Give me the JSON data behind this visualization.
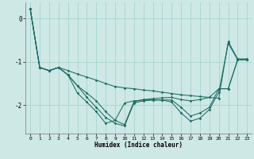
{
  "background_color": "#cde8e5",
  "grid_color": "#a8d4d0",
  "line_color": "#1e6b65",
  "xlabel": "Humidex (Indice chaleur)",
  "xlim": [
    -0.5,
    23.5
  ],
  "ylim": [
    -2.65,
    0.38
  ],
  "yticks": [
    0,
    -1,
    -2
  ],
  "xticks": [
    0,
    1,
    2,
    3,
    4,
    5,
    6,
    7,
    8,
    9,
    10,
    11,
    12,
    13,
    14,
    15,
    16,
    17,
    18,
    19,
    20,
    21,
    22,
    23
  ],
  "line1_x": [
    0,
    1,
    2,
    3,
    4,
    5,
    6,
    7,
    8,
    9,
    10,
    11,
    12,
    13,
    14,
    15,
    16,
    17,
    18,
    19,
    20,
    21,
    22,
    23
  ],
  "line1_y": [
    0.22,
    -1.13,
    -1.2,
    -1.13,
    -1.2,
    -1.28,
    -1.35,
    -1.42,
    -1.5,
    -1.57,
    -1.6,
    -1.62,
    -1.65,
    -1.67,
    -1.7,
    -1.73,
    -1.76,
    -1.78,
    -1.8,
    -1.82,
    -1.84,
    -0.53,
    -0.93,
    -0.93
  ],
  "line2_x": [
    0,
    1,
    2,
    3,
    4,
    5,
    6,
    7,
    8,
    9,
    10,
    11,
    12,
    13,
    14,
    15,
    16,
    17,
    18,
    19,
    20,
    21,
    22,
    23
  ],
  "line2_y": [
    0.22,
    -1.13,
    -1.2,
    -1.13,
    -1.3,
    -1.55,
    -1.72,
    -1.9,
    -2.15,
    -2.35,
    -2.45,
    -1.92,
    -1.87,
    -1.85,
    -1.83,
    -1.82,
    -1.87,
    -1.9,
    -1.87,
    -1.82,
    -1.62,
    -1.62,
    -0.95,
    -0.95
  ],
  "line3_x": [
    0,
    1,
    2,
    3,
    4,
    5,
    6,
    7,
    8,
    9,
    10,
    11,
    12,
    13,
    14,
    15,
    16,
    17,
    18,
    19,
    20,
    21,
    22,
    23
  ],
  "line3_y": [
    0.22,
    -1.13,
    -1.2,
    -1.13,
    -1.3,
    -1.55,
    -1.82,
    -2.05,
    -2.28,
    -2.42,
    -2.48,
    -1.95,
    -1.9,
    -1.88,
    -1.88,
    -1.88,
    -2.05,
    -2.25,
    -2.18,
    -2.05,
    -1.62,
    -1.62,
    -0.95,
    -0.95
  ],
  "line4_x": [
    0,
    1,
    2,
    3,
    4,
    5,
    6,
    7,
    8,
    9,
    10,
    11,
    12,
    13,
    14,
    15,
    16,
    17,
    18,
    19,
    20,
    21,
    22,
    23
  ],
  "line4_y": [
    0.22,
    -1.13,
    -1.2,
    -1.13,
    -1.3,
    -1.72,
    -1.93,
    -2.15,
    -2.42,
    -2.35,
    -1.95,
    -1.9,
    -1.88,
    -1.88,
    -1.88,
    -1.93,
    -2.18,
    -2.37,
    -2.3,
    -2.1,
    -1.7,
    -0.57,
    -0.95,
    -0.95
  ]
}
